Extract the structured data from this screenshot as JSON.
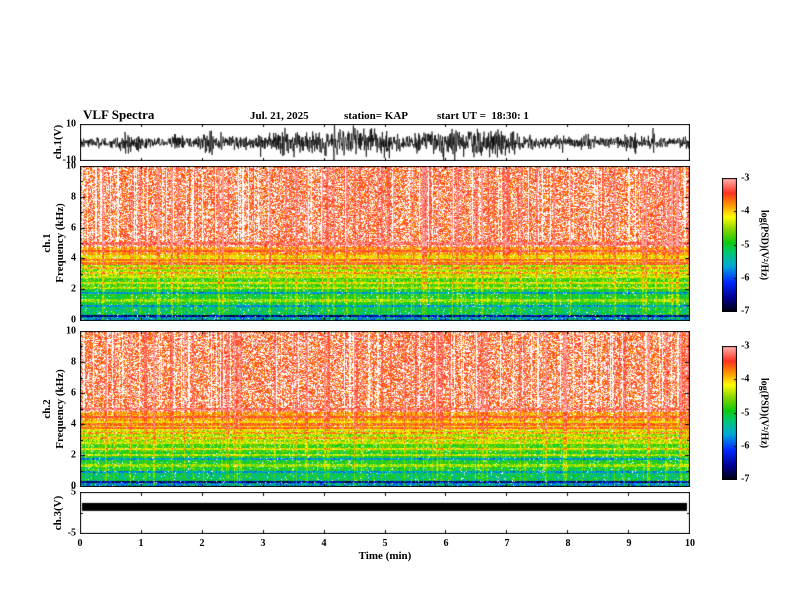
{
  "title": {
    "main": "VLF Spectra",
    "date": "Jul. 21, 2025",
    "station": "station= KAP",
    "start_ut": "start UT =  18:30: 1"
  },
  "axes": {
    "x_label": "Time (min)",
    "x_ticks": [
      "0",
      "1",
      "2",
      "3",
      "4",
      "5",
      "6",
      "7",
      "8",
      "9",
      "10"
    ],
    "panel1": {
      "ylabel": "ch.1(V)",
      "yticks": [
        "10",
        "-10"
      ]
    },
    "panel2": {
      "ylabel_channel": "ch.1",
      "ylabel_freq": "Frequency (kHz)",
      "yticks": [
        "10",
        "8",
        "6",
        "4",
        "2",
        "0"
      ]
    },
    "panel3": {
      "ylabel_channel": "ch.2",
      "ylabel_freq": "Frequency (kHz)",
      "yticks": [
        "10",
        "8",
        "6",
        "4",
        "2",
        "0"
      ]
    },
    "panel4": {
      "ylabel": "ch.3(V)",
      "yticks": [
        "5",
        "-5"
      ]
    }
  },
  "colorbar": {
    "label": "log(PSD)(V²/Hz)",
    "ticks": [
      "-3",
      "-4",
      "-5",
      "-6",
      "-7"
    ],
    "range": [
      -7,
      -3
    ],
    "stops": [
      {
        "t": 0.0,
        "c": "#000010"
      },
      {
        "t": 0.1,
        "c": "#000090"
      },
      {
        "t": 0.22,
        "c": "#0028ff"
      },
      {
        "t": 0.34,
        "c": "#00a8d8"
      },
      {
        "t": 0.44,
        "c": "#00c878"
      },
      {
        "t": 0.52,
        "c": "#10cc10"
      },
      {
        "t": 0.62,
        "c": "#8cd800"
      },
      {
        "t": 0.71,
        "c": "#ffff00"
      },
      {
        "t": 0.8,
        "c": "#ff9600"
      },
      {
        "t": 0.89,
        "c": "#ff3220"
      },
      {
        "t": 1.0,
        "c": "#ffb4b4"
      }
    ]
  },
  "chart_data": [
    {
      "id": "ch1_waveform",
      "type": "line",
      "panel": "ch.1(V)",
      "xlim": [
        0,
        10
      ],
      "ylim": [
        -10,
        10
      ],
      "seed": 101,
      "mean_amp": 3.4,
      "description": "Dense broadband noise waveform spanning roughly ±9 V for the full 10-minute record"
    },
    {
      "id": "ch1_spectrogram",
      "type": "heatmap",
      "panel": "ch.1 Frequency (kHz)",
      "xlim": [
        0,
        10
      ],
      "ylim": [
        0,
        10
      ],
      "zlim": [
        -7,
        -3
      ],
      "zlabel": "log(PSD)(V²/Hz)",
      "seed": 202,
      "bands": [
        {
          "f": [
            4.8,
            10.01
          ],
          "level": -3.55,
          "jitter": 0.3,
          "gap": 0.4
        },
        {
          "f": [
            4.25,
            4.8
          ],
          "level": -3.8,
          "jitter": 0.25,
          "gap": 0.1
        },
        {
          "f": [
            3.6,
            4.25
          ],
          "level": -4.1,
          "jitter": 0.35,
          "gap": 0.05
        },
        {
          "f": [
            2.9,
            3.6
          ],
          "level": -4.45,
          "jitter": 0.4,
          "gap": 0.04
        },
        {
          "f": [
            2.2,
            2.9
          ],
          "level": -4.75,
          "jitter": 0.35,
          "gap": 0.03
        },
        {
          "f": [
            0.9,
            2.2
          ],
          "level": -4.95,
          "jitter": 0.35,
          "gap": 0.03
        },
        {
          "f": [
            0.35,
            0.9
          ],
          "level": -5.15,
          "jitter": 0.45,
          "gap": 0.02
        },
        {
          "f": [
            0.0,
            0.35
          ],
          "level": -5.6,
          "jitter": 0.6,
          "gap": 0.02
        }
      ],
      "lines": [
        {
          "f": 0.3,
          "b": -1.0
        },
        {
          "f": 0.95,
          "b": -0.7
        },
        {
          "f": 1.3,
          "b": 0.45
        },
        {
          "f": 1.8,
          "b": -0.7
        },
        {
          "f": 2.1,
          "b": 0.55
        },
        {
          "f": 2.45,
          "b": 0.55
        },
        {
          "f": 2.8,
          "b": 0.5
        },
        {
          "f": 3.1,
          "b": 0.55
        },
        {
          "f": 3.4,
          "b": 0.6
        },
        {
          "f": 3.7,
          "b": 0.55
        },
        {
          "f": 3.95,
          "b": 0.5
        },
        {
          "f": 4.5,
          "b": 0.35
        },
        {
          "f": 5.0,
          "b": 0.3
        }
      ],
      "streaks": {
        "count": 95,
        "white_count": 80,
        "boost": 0.55
      },
      "description": "Broadband red (~-3.5) above ~4.5 kHz with vertical impulsive streaks; yellow/green layered bands with narrow spectral lines below 4 kHz"
    },
    {
      "id": "ch2_spectrogram",
      "type": "heatmap",
      "panel": "ch.2 Frequency (kHz)",
      "xlim": [
        0,
        10
      ],
      "ylim": [
        0,
        10
      ],
      "zlim": [
        -7,
        -3
      ],
      "zlabel": "log(PSD)(V²/Hz)",
      "seed": 303,
      "bands": [
        {
          "f": [
            4.8,
            10.01
          ],
          "level": -3.55,
          "jitter": 0.3,
          "gap": 0.4
        },
        {
          "f": [
            4.25,
            4.8
          ],
          "level": -3.8,
          "jitter": 0.25,
          "gap": 0.1
        },
        {
          "f": [
            3.6,
            4.25
          ],
          "level": -4.1,
          "jitter": 0.35,
          "gap": 0.05
        },
        {
          "f": [
            2.9,
            3.6
          ],
          "level": -4.45,
          "jitter": 0.4,
          "gap": 0.04
        },
        {
          "f": [
            2.2,
            2.9
          ],
          "level": -4.75,
          "jitter": 0.35,
          "gap": 0.03
        },
        {
          "f": [
            0.9,
            2.2
          ],
          "level": -4.95,
          "jitter": 0.35,
          "gap": 0.03
        },
        {
          "f": [
            0.35,
            0.9
          ],
          "level": -5.15,
          "jitter": 0.45,
          "gap": 0.02
        },
        {
          "f": [
            0.0,
            0.35
          ],
          "level": -5.6,
          "jitter": 0.6,
          "gap": 0.02
        }
      ],
      "lines": [
        {
          "f": 0.3,
          "b": -1.0
        },
        {
          "f": 0.95,
          "b": -0.7
        },
        {
          "f": 1.35,
          "b": 0.45
        },
        {
          "f": 1.8,
          "b": -0.7
        },
        {
          "f": 2.05,
          "b": 0.55
        },
        {
          "f": 2.4,
          "b": 0.55
        },
        {
          "f": 2.8,
          "b": 0.5
        },
        {
          "f": 3.15,
          "b": 0.55
        },
        {
          "f": 3.45,
          "b": 0.6
        },
        {
          "f": 3.75,
          "b": 0.55
        },
        {
          "f": 4.0,
          "b": 0.5
        },
        {
          "f": 4.5,
          "b": 0.35
        },
        {
          "f": 5.0,
          "b": 0.3
        }
      ],
      "streaks": {
        "count": 95,
        "white_count": 80,
        "boost": 0.55
      },
      "description": "Same structure as ch.1 spectrogram"
    },
    {
      "id": "ch3_bar",
      "type": "area",
      "panel": "ch.3(V)",
      "xlim": [
        0,
        10
      ],
      "ylim": [
        -5,
        5
      ],
      "bar_top": 2.4,
      "bar_bottom": 0.5,
      "color": "#000000",
      "description": "Constant saturated black band (~0.5 to 2.4 V) across the full 10 minutes"
    }
  ]
}
